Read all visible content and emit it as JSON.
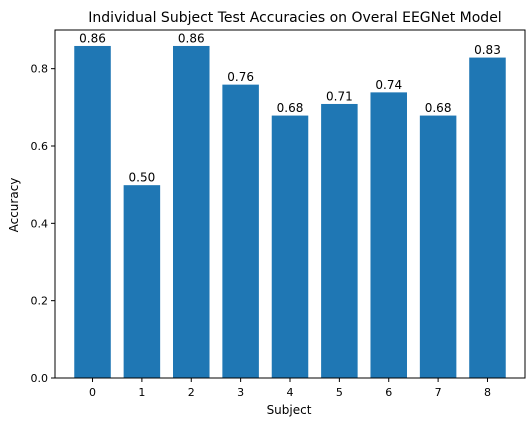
{
  "chart_data": {
    "type": "bar",
    "title": "Individual Subject Test Accuracies on Overal EEGNet Model",
    "xlabel": "Subject",
    "ylabel": "Accuracy",
    "categories": [
      "0",
      "1",
      "2",
      "3",
      "4",
      "5",
      "6",
      "7",
      "8"
    ],
    "values": [
      0.86,
      0.5,
      0.86,
      0.76,
      0.68,
      0.71,
      0.74,
      0.68,
      0.83
    ],
    "value_labels": [
      "0.86",
      "0.50",
      "0.86",
      "0.76",
      "0.68",
      "0.71",
      "0.74",
      "0.68",
      "0.83"
    ],
    "ylim": [
      0,
      0.9
    ],
    "yticks": [
      0.0,
      0.2,
      0.4,
      0.6,
      0.8
    ],
    "ytick_labels": [
      "0.0",
      "0.2",
      "0.4",
      "0.6",
      "0.8"
    ],
    "grid": false,
    "bar_color": "#1f77b4",
    "bar_edge_color": "#ffffff"
  }
}
